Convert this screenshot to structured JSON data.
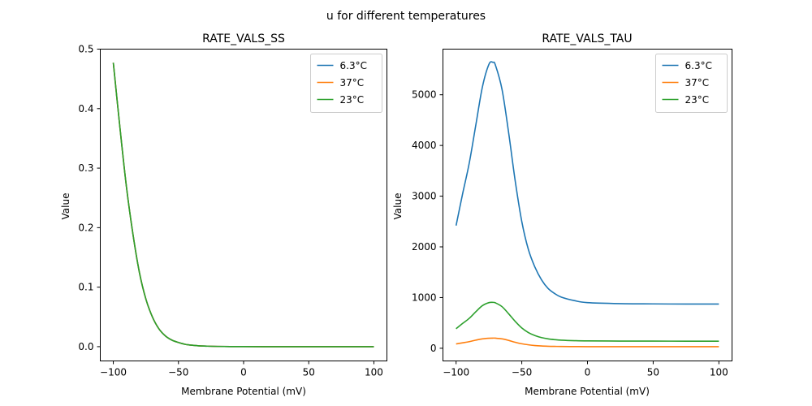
{
  "figure_title": "u for different temperatures",
  "chart_data": [
    {
      "type": "line",
      "title": "RATE_VALS_SS",
      "xlabel": "Membrane Potential (mV)",
      "ylabel": "Value",
      "xlim": [
        -110,
        110
      ],
      "ylim": [
        -0.024,
        0.5
      ],
      "xticks": [
        -100,
        -50,
        0,
        50,
        100
      ],
      "xtick_labels": [
        "−100",
        "−50",
        "0",
        "50",
        "100"
      ],
      "yticks": [
        0.0,
        0.1,
        0.2,
        0.3,
        0.4,
        0.5
      ],
      "ytick_labels": [
        "0.0",
        "0.1",
        "0.2",
        "0.3",
        "0.4",
        "0.5"
      ],
      "grid": false,
      "legend": "top-right",
      "x": [
        -100,
        -95,
        -90,
        -85,
        -80,
        -75,
        -70,
        -65,
        -60,
        -55,
        -50,
        -45,
        -40,
        -35,
        -30,
        -20,
        -10,
        0,
        25,
        50,
        75,
        100
      ],
      "series": [
        {
          "name": "6.3°C",
          "color": "#1f77b4",
          "values": [
            0.477,
            0.37,
            0.27,
            0.19,
            0.125,
            0.08,
            0.05,
            0.03,
            0.018,
            0.011,
            0.007,
            0.004,
            0.0025,
            0.0015,
            0.001,
            0.0004,
            0.0002,
            0.0001,
            0.0,
            0.0,
            0.0,
            0.0
          ]
        },
        {
          "name": "37°C",
          "color": "#ff7f0e",
          "values": [
            0.477,
            0.37,
            0.27,
            0.19,
            0.125,
            0.08,
            0.05,
            0.03,
            0.018,
            0.011,
            0.007,
            0.004,
            0.0025,
            0.0015,
            0.001,
            0.0004,
            0.0002,
            0.0001,
            0.0,
            0.0,
            0.0,
            0.0
          ]
        },
        {
          "name": "23°C",
          "color": "#2ca02c",
          "values": [
            0.477,
            0.37,
            0.27,
            0.19,
            0.125,
            0.08,
            0.05,
            0.03,
            0.018,
            0.011,
            0.007,
            0.004,
            0.0025,
            0.0015,
            0.001,
            0.0004,
            0.0002,
            0.0001,
            0.0,
            0.0,
            0.0,
            0.0
          ]
        }
      ]
    },
    {
      "type": "line",
      "title": "RATE_VALS_TAU",
      "xlabel": "Membrane Potential (mV)",
      "ylabel": "Value",
      "xlim": [
        -110,
        110
      ],
      "ylim": [
        -250,
        5900
      ],
      "xticks": [
        -100,
        -50,
        0,
        50,
        100
      ],
      "xtick_labels": [
        "−100",
        "−50",
        "0",
        "50",
        "100"
      ],
      "yticks": [
        0,
        1000,
        2000,
        3000,
        4000,
        5000
      ],
      "ytick_labels": [
        "0",
        "1000",
        "2000",
        "3000",
        "4000",
        "5000"
      ],
      "grid": false,
      "legend": "top-right",
      "x": [
        -100,
        -95,
        -90,
        -85,
        -80,
        -75,
        -72,
        -70,
        -65,
        -60,
        -55,
        -50,
        -45,
        -40,
        -35,
        -30,
        -25,
        -20,
        -10,
        0,
        25,
        50,
        75,
        100
      ],
      "series": [
        {
          "name": "6.3°C",
          "color": "#1f77b4",
          "values": [
            2420,
            3050,
            3650,
            4400,
            5150,
            5600,
            5640,
            5580,
            5100,
            4250,
            3300,
            2500,
            1950,
            1600,
            1350,
            1180,
            1080,
            1010,
            940,
            900,
            880,
            875,
            872,
            872
          ]
        },
        {
          "name": "37°C",
          "color": "#ff7f0e",
          "values": [
            85,
            107,
            130,
            160,
            185,
            198,
            200,
            199,
            185,
            155,
            118,
            88,
            68,
            54,
            45,
            40,
            37,
            35,
            33,
            32,
            31,
            31,
            31,
            31
          ]
        },
        {
          "name": "23°C",
          "color": "#2ca02c",
          "values": [
            385,
            490,
            590,
            720,
            840,
            900,
            905,
            895,
            820,
            680,
            530,
            400,
            310,
            250,
            210,
            185,
            170,
            160,
            150,
            145,
            142,
            141,
            140,
            140
          ]
        }
      ]
    }
  ]
}
